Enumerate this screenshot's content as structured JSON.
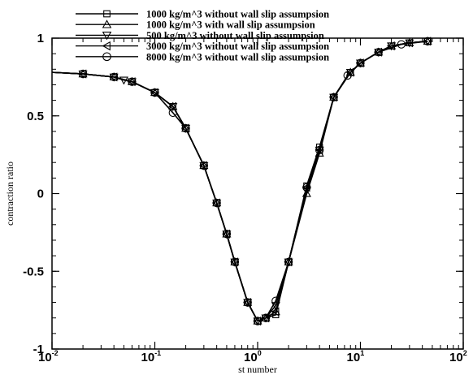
{
  "chart_data": {
    "type": "line",
    "xlabel": "st number",
    "ylabel": "contraction ratio",
    "xscale": "log",
    "xlim": [
      0.01,
      100
    ],
    "ylim": [
      -1,
      1
    ],
    "xticks": [
      {
        "value": 0.01,
        "base": "10",
        "exp": "-2"
      },
      {
        "value": 0.1,
        "base": "10",
        "exp": "-1"
      },
      {
        "value": 1,
        "base": "10",
        "exp": "0"
      },
      {
        "value": 10,
        "base": "10",
        "exp": "1"
      },
      {
        "value": 100,
        "base": "10",
        "exp": "2"
      }
    ],
    "yticks": [
      {
        "value": -1,
        "label": "-1"
      },
      {
        "value": -0.5,
        "label": "-0.5"
      },
      {
        "value": 0,
        "label": "0"
      },
      {
        "value": 0.5,
        "label": "0.5"
      },
      {
        "value": 1,
        "label": "1"
      }
    ],
    "grid": false,
    "legend_position": "top-center",
    "series": [
      {
        "name": "1000 kg/m^3 without wall slip assumpsion",
        "marker": "square",
        "x": [
          0.01,
          0.02,
          0.04,
          0.06,
          0.1,
          0.15,
          0.2,
          0.3,
          0.4,
          0.5,
          0.6,
          0.8,
          1.0,
          1.2,
          1.5,
          2.0,
          3.0,
          4.0,
          5.5,
          8.0,
          10,
          15,
          20,
          30,
          45
        ],
        "y": [
          0.78,
          0.77,
          0.75,
          0.72,
          0.65,
          0.56,
          0.42,
          0.18,
          -0.06,
          -0.26,
          -0.44,
          -0.7,
          -0.82,
          -0.8,
          -0.78,
          -0.44,
          0.05,
          0.3,
          0.62,
          0.78,
          0.84,
          0.91,
          0.95,
          0.97,
          0.98
        ]
      },
      {
        "name": "1000 kg/m^3 with wall slip assumpsion",
        "marker": "triangle-up",
        "x": [
          0.01,
          0.02,
          0.04,
          0.06,
          0.1,
          0.15,
          0.2,
          0.3,
          0.4,
          0.5,
          0.6,
          0.8,
          1.0,
          1.2,
          1.5,
          2.0,
          3.0,
          4.0,
          5.5,
          8.0,
          10,
          15,
          20,
          30,
          45
        ],
        "y": [
          0.78,
          0.77,
          0.75,
          0.72,
          0.65,
          0.56,
          0.42,
          0.18,
          -0.06,
          -0.26,
          -0.44,
          -0.7,
          -0.82,
          -0.8,
          -0.76,
          -0.44,
          0.0,
          0.26,
          0.62,
          0.78,
          0.84,
          0.91,
          0.95,
          0.97,
          0.98
        ]
      },
      {
        "name": "500 kg/m^3 without wall slip assumpsion",
        "marker": "triangle-down",
        "x": [
          0.01,
          0.02,
          0.04,
          0.05,
          0.06,
          0.1,
          0.15,
          0.2,
          0.3,
          0.4,
          0.5,
          0.6,
          0.8,
          1.0,
          1.2,
          1.5,
          2.0,
          3.0,
          4.0,
          5.5,
          8.0,
          10,
          15,
          20,
          30,
          45
        ],
        "y": [
          0.78,
          0.77,
          0.75,
          0.73,
          0.72,
          0.65,
          0.56,
          0.42,
          0.18,
          -0.06,
          -0.26,
          -0.44,
          -0.7,
          -0.82,
          -0.8,
          -0.72,
          -0.44,
          0.02,
          0.28,
          0.62,
          0.78,
          0.84,
          0.91,
          0.95,
          0.97,
          0.98
        ]
      },
      {
        "name": "3000 kg/m^3 without wall slip assumpsion",
        "marker": "triangle-left",
        "x": [
          0.01,
          0.02,
          0.04,
          0.06,
          0.1,
          0.15,
          0.2,
          0.3,
          0.4,
          0.5,
          0.6,
          0.8,
          1.0,
          1.2,
          1.5,
          2.0,
          3.0,
          4.0,
          5.5,
          8.0,
          10,
          15,
          20,
          30,
          45
        ],
        "y": [
          0.78,
          0.77,
          0.75,
          0.72,
          0.65,
          0.56,
          0.42,
          0.18,
          -0.06,
          -0.26,
          -0.44,
          -0.7,
          -0.82,
          -0.8,
          -0.76,
          -0.44,
          0.04,
          0.28,
          0.62,
          0.78,
          0.84,
          0.91,
          0.95,
          0.97,
          0.98
        ]
      },
      {
        "name": "8000 kg/m^3 without wall slip assumpsion",
        "marker": "circle",
        "x": [
          0.01,
          0.02,
          0.04,
          0.06,
          0.1,
          0.15,
          0.2,
          0.3,
          0.4,
          0.5,
          0.6,
          0.8,
          1.0,
          1.2,
          1.5,
          2.0,
          3.0,
          4.0,
          5.5,
          7.5,
          10,
          15,
          25,
          45
        ],
        "y": [
          0.78,
          0.77,
          0.75,
          0.72,
          0.65,
          0.52,
          0.42,
          0.18,
          -0.06,
          -0.26,
          -0.44,
          -0.7,
          -0.82,
          -0.8,
          -0.69,
          -0.44,
          0.04,
          0.28,
          0.62,
          0.76,
          0.84,
          0.91,
          0.96,
          0.98
        ]
      }
    ]
  }
}
